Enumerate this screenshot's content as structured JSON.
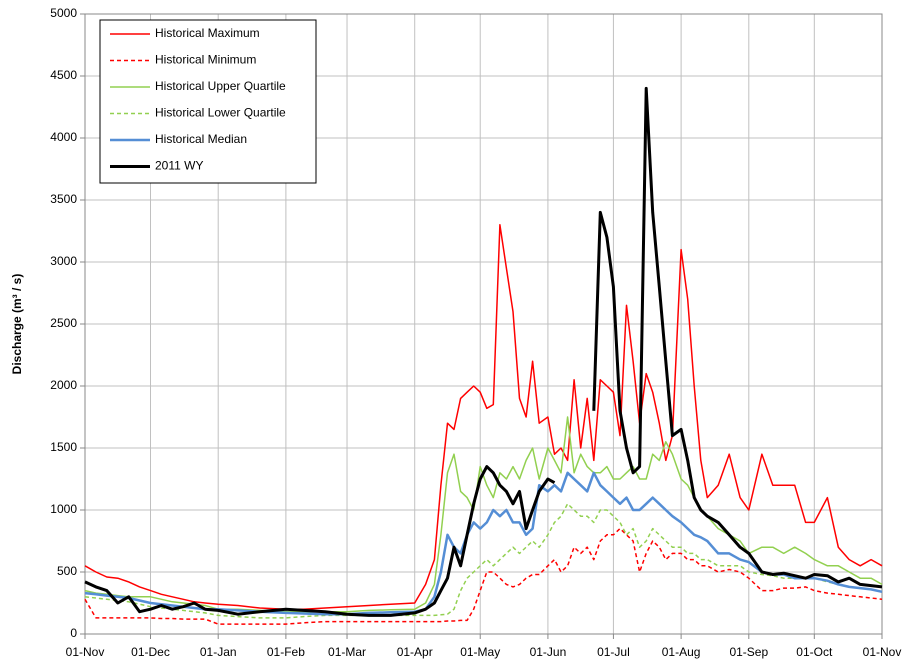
{
  "chart_data": {
    "type": "line",
    "y_label": "Discharge (m³ / s)",
    "ylim": [
      0,
      5000
    ],
    "yticks": [
      0,
      500,
      1000,
      1500,
      2000,
      2500,
      3000,
      3500,
      4000,
      4500,
      5000
    ],
    "xlim": [
      0,
      365
    ],
    "xticks": [
      {
        "value": 0,
        "label": "01-Nov"
      },
      {
        "value": 30,
        "label": "01-Dec"
      },
      {
        "value": 61,
        "label": "01-Jan"
      },
      {
        "value": 92,
        "label": "01-Feb"
      },
      {
        "value": 120,
        "label": "01-Mar"
      },
      {
        "value": 151,
        "label": "01-Apr"
      },
      {
        "value": 181,
        "label": "01-May"
      },
      {
        "value": 212,
        "label": "01-Jun"
      },
      {
        "value": 242,
        "label": "01-Jul"
      },
      {
        "value": 273,
        "label": "01-Aug"
      },
      {
        "value": 304,
        "label": "01-Sep"
      },
      {
        "value": 334,
        "label": "01-Oct"
      },
      {
        "value": 365,
        "label": "01-Nov"
      }
    ],
    "grid": true,
    "legend": "upper left",
    "x": [
      0,
      5,
      10,
      15,
      20,
      25,
      30,
      35,
      40,
      45,
      50,
      55,
      61,
      70,
      80,
      92,
      100,
      110,
      120,
      130,
      140,
      151,
      156,
      160,
      163,
      166,
      169,
      172,
      175,
      178,
      181,
      184,
      187,
      190,
      193,
      196,
      199,
      202,
      205,
      208,
      212,
      215,
      218,
      221,
      224,
      227,
      230,
      233,
      236,
      239,
      242,
      245,
      248,
      251,
      254,
      257,
      260,
      263,
      266,
      269,
      273,
      276,
      279,
      282,
      285,
      290,
      295,
      300,
      304,
      310,
      315,
      320,
      325,
      330,
      334,
      340,
      345,
      350,
      355,
      360,
      365
    ],
    "series": [
      {
        "name": "Historical Maximum",
        "color": "#ff0000",
        "dash": false,
        "width": 1.5,
        "values": [
          550,
          500,
          460,
          450,
          420,
          380,
          350,
          320,
          300,
          280,
          260,
          250,
          240,
          230,
          210,
          200,
          200,
          210,
          220,
          230,
          240,
          250,
          400,
          600,
          1200,
          1700,
          1650,
          1900,
          1950,
          2000,
          1950,
          1820,
          1850,
          3300,
          2950,
          2600,
          1900,
          1750,
          2200,
          1700,
          1750,
          1450,
          1500,
          1400,
          2050,
          1500,
          1900,
          1400,
          2050,
          2000,
          1950,
          1600,
          2650,
          2200,
          1700,
          2100,
          1950,
          1700,
          1400,
          1600,
          3100,
          2700,
          2000,
          1400,
          1100,
          1200,
          1450,
          1100,
          1000,
          1450,
          1200,
          1200,
          1200,
          900,
          900,
          1100,
          700,
          600,
          550,
          600,
          550
        ]
      },
      {
        "name": "Historical Minimum",
        "color": "#ff0000",
        "dash": true,
        "width": 1.5,
        "values": [
          280,
          130,
          130,
          130,
          130,
          130,
          130,
          125,
          125,
          120,
          120,
          120,
          80,
          80,
          80,
          80,
          90,
          100,
          100,
          100,
          100,
          100,
          100,
          100,
          100,
          105,
          105,
          110,
          110,
          200,
          350,
          500,
          500,
          450,
          400,
          380,
          400,
          450,
          480,
          480,
          550,
          600,
          500,
          550,
          700,
          650,
          700,
          600,
          750,
          800,
          800,
          850,
          800,
          750,
          500,
          650,
          750,
          700,
          600,
          650,
          650,
          600,
          600,
          550,
          550,
          500,
          520,
          500,
          450,
          350,
          350,
          370,
          370,
          380,
          350,
          330,
          320,
          310,
          300,
          290,
          280
        ]
      },
      {
        "name": "Historical Upper Quartile",
        "color": "#92d050",
        "dash": false,
        "width": 1.5,
        "values": [
          350,
          330,
          320,
          310,
          300,
          300,
          300,
          280,
          260,
          250,
          240,
          230,
          200,
          200,
          190,
          180,
          180,
          180,
          180,
          190,
          195,
          200,
          250,
          400,
          800,
          1300,
          1450,
          1150,
          1100,
          1000,
          1350,
          1200,
          1100,
          1300,
          1250,
          1350,
          1250,
          1400,
          1500,
          1250,
          1500,
          1400,
          1300,
          1750,
          1300,
          1450,
          1350,
          1300,
          1300,
          1350,
          1250,
          1250,
          1300,
          1350,
          1250,
          1250,
          1450,
          1400,
          1550,
          1450,
          1250,
          1200,
          1100,
          1000,
          950,
          850,
          800,
          750,
          650,
          700,
          700,
          650,
          700,
          650,
          600,
          550,
          550,
          500,
          450,
          450,
          400
        ]
      },
      {
        "name": "Historical Lower Quartile",
        "color": "#92d050",
        "dash": true,
        "width": 1.5,
        "values": [
          300,
          290,
          280,
          270,
          260,
          240,
          220,
          210,
          200,
          190,
          180,
          170,
          150,
          140,
          130,
          130,
          140,
          150,
          150,
          150,
          150,
          150,
          150,
          150,
          155,
          160,
          200,
          350,
          450,
          500,
          550,
          600,
          550,
          600,
          650,
          700,
          650,
          700,
          750,
          700,
          800,
          900,
          950,
          1050,
          1000,
          950,
          950,
          900,
          1000,
          1000,
          950,
          900,
          800,
          850,
          700,
          750,
          850,
          800,
          750,
          700,
          700,
          650,
          650,
          600,
          600,
          550,
          550,
          550,
          500,
          480,
          470,
          450,
          450,
          450,
          450,
          420,
          400,
          380,
          370,
          360,
          340
        ]
      },
      {
        "name": "Historical Median",
        "color": "#558ed5",
        "dash": false,
        "width": 2.5,
        "values": [
          330,
          320,
          310,
          300,
          290,
          270,
          250,
          240,
          230,
          220,
          210,
          200,
          200,
          190,
          180,
          170,
          165,
          160,
          160,
          170,
          175,
          180,
          200,
          300,
          500,
          800,
          700,
          650,
          800,
          900,
          850,
          900,
          1000,
          950,
          1000,
          900,
          900,
          800,
          850,
          1200,
          1150,
          1200,
          1150,
          1300,
          1250,
          1200,
          1150,
          1300,
          1200,
          1150,
          1100,
          1050,
          1100,
          1000,
          1000,
          1050,
          1100,
          1050,
          1000,
          950,
          900,
          850,
          800,
          780,
          750,
          650,
          650,
          600,
          580,
          500,
          480,
          480,
          450,
          450,
          450,
          430,
          400,
          380,
          370,
          360,
          340
        ]
      },
      {
        "name": "2011 WY",
        "color": "#000000",
        "dash": false,
        "width": 3,
        "values": [
          420,
          380,
          350,
          250,
          300,
          180,
          200,
          230,
          200,
          220,
          250,
          200,
          190,
          160,
          180,
          200,
          190,
          180,
          160,
          150,
          150,
          170,
          200,
          250,
          350,
          450,
          700,
          550,
          800,
          1050,
          1250,
          1350,
          1300,
          1200,
          1150,
          1050,
          1150,
          850,
          1000,
          1150,
          1250,
          1220,
          null,
          null,
          null,
          null,
          null,
          1800,
          3400,
          3200,
          2800,
          1800,
          1500,
          1300,
          1350,
          4400,
          3400,
          2800,
          2200,
          1600,
          1650,
          1400,
          1100,
          1000,
          950,
          900,
          800,
          700,
          650,
          500,
          480,
          490,
          470,
          450,
          480,
          470,
          420,
          450,
          400,
          390,
          380
        ]
      }
    ]
  }
}
